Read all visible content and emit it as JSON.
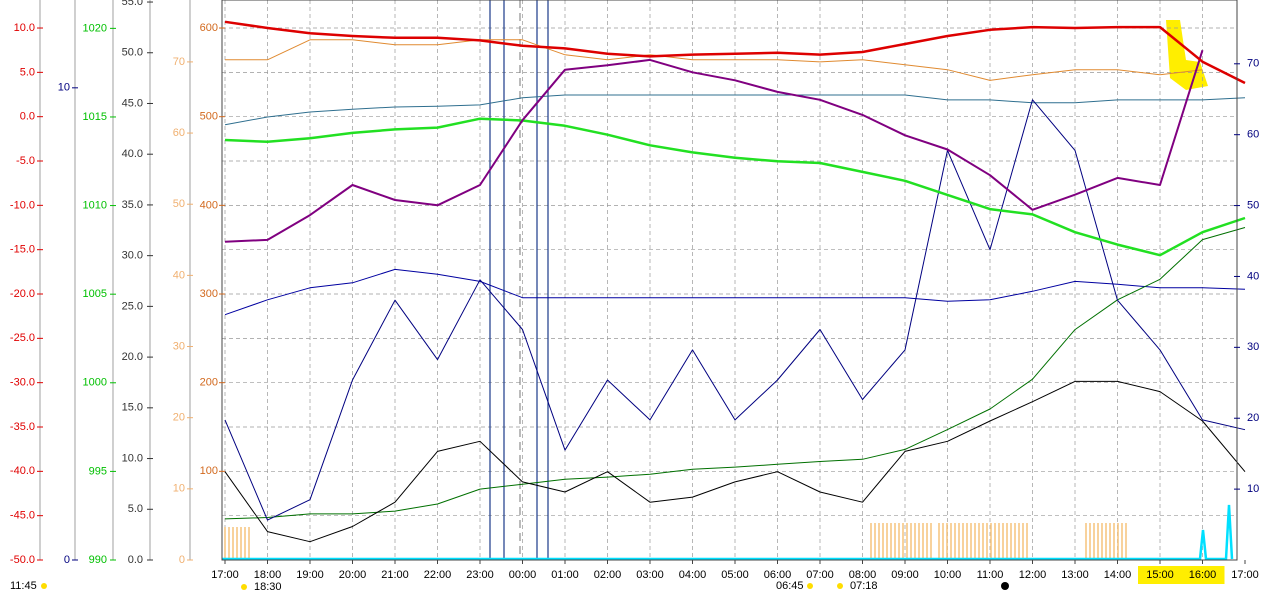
{
  "chart_data": {
    "type": "line",
    "x": [
      0,
      1,
      2,
      3,
      4,
      5,
      6,
      7,
      8,
      9,
      10,
      11,
      12,
      13,
      14,
      15,
      16,
      17,
      18,
      19,
      20,
      21,
      22,
      23,
      24
    ],
    "xlim": [
      0,
      24
    ],
    "xticks": [
      {
        "value": 0,
        "label": "17:00"
      },
      {
        "value": 1,
        "label": "18:00"
      },
      {
        "value": 2,
        "label": "19:00"
      },
      {
        "value": 3,
        "label": "20:00"
      },
      {
        "value": 4,
        "label": "21:00"
      },
      {
        "value": 5,
        "label": "22:00"
      },
      {
        "value": 6,
        "label": "23:00"
      },
      {
        "value": 7,
        "label": "00:00"
      },
      {
        "value": 8,
        "label": "01:00"
      },
      {
        "value": 9,
        "label": "02:00"
      },
      {
        "value": 10,
        "label": "03:00"
      },
      {
        "value": 11,
        "label": "04:00"
      },
      {
        "value": 12,
        "label": "05:00"
      },
      {
        "value": 13,
        "label": "06:00"
      },
      {
        "value": 14,
        "label": "07:00"
      },
      {
        "value": 15,
        "label": "08:00"
      },
      {
        "value": 16,
        "label": "09:00"
      },
      {
        "value": 17,
        "label": "10:00"
      },
      {
        "value": 18,
        "label": "11:00"
      },
      {
        "value": 19,
        "label": "12:00"
      },
      {
        "value": 20,
        "label": "13:00"
      },
      {
        "value": 21,
        "label": "14:00"
      },
      {
        "value": 22,
        "label": "15:00"
      },
      {
        "value": 23,
        "label": "16:00"
      },
      {
        "value": 24,
        "label": "17:00"
      }
    ],
    "highlighted_xticks": [
      22,
      23
    ],
    "grid": true,
    "ylim": [
      0,
      631.6
    ],
    "yticks": [
      100,
      200,
      300,
      400,
      500,
      600
    ],
    "y2lim": [
      0,
      79
    ],
    "y2ticks": [
      10,
      20,
      30,
      40,
      50,
      60,
      70
    ],
    "y3lim": [
      -50,
      13.16
    ],
    "y3ticks": [
      {
        "value": 10,
        "label": "10.0"
      },
      {
        "value": 5,
        "label": "5.0"
      },
      {
        "value": 0,
        "label": "0.0"
      },
      {
        "value": -5,
        "label": "-5.0"
      },
      {
        "value": -10,
        "label": "-10.0"
      },
      {
        "value": -15,
        "label": "-15.0"
      },
      {
        "value": -20,
        "label": "-20.0"
      },
      {
        "value": -25,
        "label": "-25.0"
      },
      {
        "value": -30,
        "label": "-30.0"
      },
      {
        "value": -35,
        "label": "-35.0"
      },
      {
        "value": -40,
        "label": "-40.0"
      },
      {
        "value": -45,
        "label": "-45.0"
      },
      {
        "value": -50,
        "label": "-50.0"
      }
    ],
    "y4lim": [
      0,
      11.86
    ],
    "y4ticks": [
      0,
      10
    ],
    "y5lim": [
      990,
      1021.6
    ],
    "y5ticks": [
      990,
      995,
      1000,
      1005,
      1010,
      1015,
      1020
    ],
    "y6lim": [
      0,
      55.2
    ],
    "y6ticks": [
      {
        "value": 0,
        "label": "0.0"
      },
      {
        "value": 5,
        "label": "5.0"
      },
      {
        "value": 10,
        "label": "10.0"
      },
      {
        "value": 15,
        "label": "15.0"
      },
      {
        "value": 20,
        "label": "20.0"
      },
      {
        "value": 25,
        "label": "25.0"
      },
      {
        "value": 30,
        "label": "30.0"
      },
      {
        "value": 35,
        "label": "35.0"
      },
      {
        "value": 40,
        "label": "40.0"
      },
      {
        "value": 45,
        "label": "45.0"
      },
      {
        "value": 50,
        "label": "50.0"
      },
      {
        "value": 55,
        "label": "55.0"
      }
    ],
    "y7lim": [
      0,
      78.7
    ],
    "y7ticks": [
      0,
      10,
      20,
      30,
      40,
      50,
      60,
      70
    ],
    "axis_colors": {
      "y": "#d2691e",
      "y2": "#00007f",
      "y3": "#e00000",
      "y4": "#00007f",
      "y5": "#00c000",
      "y6": "#333333",
      "y7": "#f0b070"
    },
    "grid_axis": "y3",
    "series": [
      {
        "axis": "y2",
        "color": "#2f6f8f",
        "width": 1,
        "values": [
          61.4,
          62.5,
          63.2,
          63.6,
          63.9,
          64.0,
          64.2,
          65.2,
          65.6,
          65.6,
          65.6,
          65.6,
          65.6,
          65.6,
          65.6,
          65.6,
          65.6,
          64.9,
          64.9,
          64.5,
          64.5,
          64.9,
          64.9,
          64.9,
          65.2
        ]
      },
      {
        "axis": "y7",
        "color": "#e08a30",
        "width": 1,
        "values": [
          70.3,
          70.3,
          73.1,
          73.1,
          72.4,
          72.4,
          73.1,
          73.1,
          71.0,
          70.3,
          71.0,
          70.3,
          70.3,
          70.3,
          70.0,
          70.3,
          69.6,
          68.9,
          67.4,
          68.2,
          68.9,
          68.9,
          68.2,
          68.9,
          null
        ]
      },
      {
        "axis": "y2",
        "color": "#0000a0",
        "width": 1,
        "values": [
          34.6,
          36.7,
          38.4,
          39.1,
          41.0,
          40.3,
          39.3,
          37.0,
          37.0,
          37.0,
          37.0,
          37.0,
          37.0,
          37.0,
          37.0,
          37.0,
          37.0,
          36.5,
          36.7,
          37.9,
          39.3,
          38.9,
          38.4,
          38.4,
          38.2
        ]
      },
      {
        "axis": "y2",
        "color": "#007000",
        "width": 1,
        "values": [
          5.8,
          6.0,
          6.5,
          6.5,
          6.9,
          7.9,
          10.0,
          10.7,
          11.4,
          11.7,
          12.1,
          12.8,
          13.1,
          13.5,
          13.9,
          14.2,
          15.6,
          18.4,
          21.3,
          25.5,
          32.5,
          36.7,
          39.6,
          45.2,
          46.9
        ]
      },
      {
        "axis": "y6",
        "color": "#000000",
        "width": 1,
        "values": [
          8.7,
          2.8,
          1.8,
          3.3,
          5.7,
          10.7,
          11.7,
          7.7,
          6.7,
          8.7,
          5.7,
          6.2,
          7.7,
          8.7,
          6.7,
          5.7,
          10.7,
          11.7,
          13.7,
          15.6,
          17.6,
          17.6,
          16.6,
          13.7,
          8.7
        ]
      },
      {
        "axis": "y",
        "color": "#000080",
        "width": 1,
        "values": [
          158,
          45,
          68,
          203,
          293,
          226,
          316,
          260,
          124,
          203,
          158,
          237,
          158,
          203,
          260,
          181,
          237,
          462,
          350,
          519,
          462,
          293,
          237,
          158,
          147
        ]
      },
      {
        "axis": "y5",
        "color": "#22e022",
        "width": 2.5,
        "values": [
          1013.7,
          1013.6,
          1013.8,
          1014.1,
          1014.3,
          1014.4,
          1014.9,
          1014.8,
          1014.5,
          1014.0,
          1013.4,
          1013.0,
          1012.7,
          1012.5,
          1012.4,
          1011.9,
          1011.4,
          1010.6,
          1009.8,
          1009.5,
          1008.5,
          1007.8,
          1007.2,
          1008.5,
          1009.3
        ]
      },
      {
        "axis": "y",
        "color": "#800080",
        "width": 2,
        "values": [
          359,
          361,
          389,
          423,
          406,
          400,
          423,
          496,
          553,
          558,
          564,
          550,
          541,
          528,
          519,
          502,
          479,
          463,
          434,
          395,
          412,
          431,
          423,
          575,
          null
        ]
      },
      {
        "axis": "y3",
        "color": "#dd0000",
        "width": 2.5,
        "values": [
          10.7,
          10.0,
          9.4,
          9.1,
          8.9,
          8.9,
          8.6,
          8.0,
          7.7,
          7.1,
          6.8,
          7.0,
          7.1,
          7.2,
          7.0,
          7.3,
          8.2,
          9.1,
          9.8,
          10.1,
          10.0,
          10.1,
          10.1,
          6.2,
          3.8
        ]
      }
    ],
    "annotations": [
      "11:45",
      "18:30",
      "06:45",
      "07:18"
    ]
  }
}
